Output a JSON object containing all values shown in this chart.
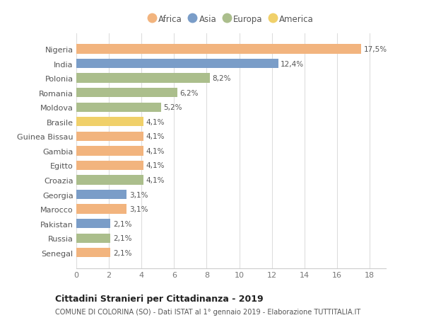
{
  "countries": [
    "Nigeria",
    "India",
    "Polonia",
    "Romania",
    "Moldova",
    "Brasile",
    "Guinea Bissau",
    "Gambia",
    "Egitto",
    "Croazia",
    "Georgia",
    "Marocco",
    "Pakistan",
    "Russia",
    "Senegal"
  ],
  "values": [
    17.5,
    12.4,
    8.2,
    6.2,
    5.2,
    4.1,
    4.1,
    4.1,
    4.1,
    4.1,
    3.1,
    3.1,
    2.1,
    2.1,
    2.1
  ],
  "labels": [
    "17,5%",
    "12,4%",
    "8,2%",
    "6,2%",
    "5,2%",
    "4,1%",
    "4,1%",
    "4,1%",
    "4,1%",
    "4,1%",
    "3,1%",
    "3,1%",
    "2,1%",
    "2,1%",
    "2,1%"
  ],
  "continents": [
    "Africa",
    "Asia",
    "Europa",
    "Europa",
    "Europa",
    "America",
    "Africa",
    "Africa",
    "Africa",
    "Europa",
    "Asia",
    "Africa",
    "Asia",
    "Europa",
    "Africa"
  ],
  "colors": {
    "Africa": "#F2B47E",
    "Asia": "#7A9DC8",
    "Europa": "#ABBE8C",
    "America": "#F0D06A"
  },
  "legend_order": [
    "Africa",
    "Asia",
    "Europa",
    "America"
  ],
  "legend_colors": [
    "#F2B47E",
    "#7A9DC8",
    "#ABBE8C",
    "#F0D06A"
  ],
  "title": "Cittadini Stranieri per Cittadinanza - 2019",
  "subtitle": "COMUNE DI COLORINA (SO) - Dati ISTAT al 1° gennaio 2019 - Elaborazione TUTTITALIA.IT",
  "xlim": [
    0,
    19
  ],
  "xticks": [
    0,
    2,
    4,
    6,
    8,
    10,
    12,
    14,
    16,
    18
  ],
  "background_color": "#ffffff",
  "grid_color": "#dddddd",
  "bar_height": 0.65
}
